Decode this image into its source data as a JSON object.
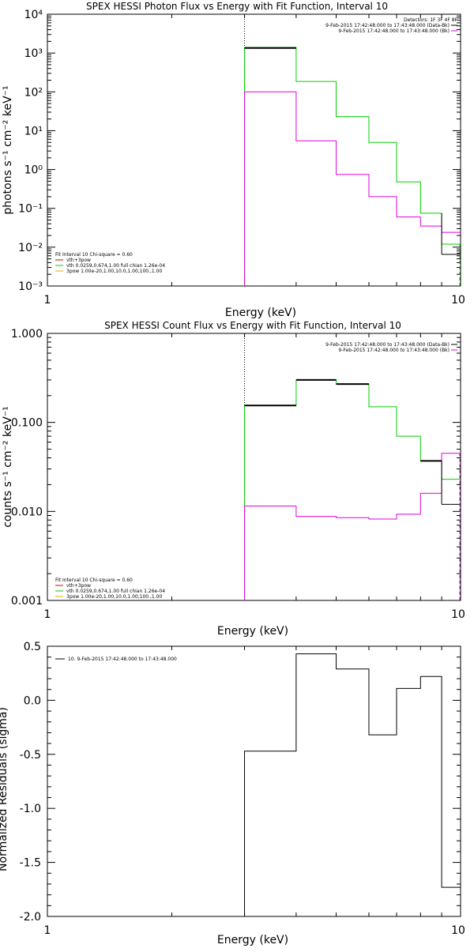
{
  "panels": [
    {
      "title": "SPEX HESSI Photon Flux vs Energy with Fit Function, Interval 10",
      "xlabel": "Energy (keV)",
      "ylabel": "photons s⁻¹ cm⁻² keV⁻¹",
      "legend_right": [
        "Detectors: 1F 3F 4F 8F",
        "9-Feb-2015 17:42:48.000 to 17:43:48.000 (Data-Bk)",
        "9-Feb-2015 17:42:48.000 to 17:43:48.000 (Bk)"
      ],
      "legend_left": [
        "Fit Interval 10   Chi-square = 0.60",
        "vth+3pow",
        "vth 0.0259,0.674,1.00  full chian 1.26e-04",
        "3pow 1.00e-20,1.00,10.0,1.00,100.,1.00"
      ],
      "ytick_labels": [
        "10⁻³",
        "10⁻²",
        "10⁻¹",
        "10⁰",
        "10¹",
        "10²",
        "10³",
        "10⁴"
      ]
    },
    {
      "title": "SPEX HESSI Count Flux vs Energy with Fit Function, Interval 10",
      "xlabel": "Energy (keV)",
      "ylabel": "counts s⁻¹ cm⁻² keV⁻¹",
      "legend_right": [
        "9-Feb-2015 17:42:48.000 to 17:43:48.000 (Data-Bk)",
        "9-Feb-2015 17:42:48.000 to 17:43:48.000 (Bk)"
      ],
      "legend_left": [
        "Fit Interval 10   Chi-square = 0.60",
        "vth+3pow",
        "vth 0.0259,0.674,1.00  full chian 1.26e-04",
        "3pow 1.00e-20,1.00,10.0,1.00,100.,1.00"
      ],
      "ytick_labels": [
        "0.001",
        "0.010",
        "0.100",
        "1.000"
      ]
    },
    {
      "title": "",
      "xlabel": "Energy (keV)",
      "ylabel": "Normalized Residuals (sigma)",
      "legend_right": [],
      "legend_left": [
        "10.  9-Feb-2015 17:42:48.000 to 17:43:48.000"
      ],
      "ytick_labels": [
        "-2.0",
        "-1.5",
        "-1.0",
        "-0.5",
        "0.0",
        "0.5"
      ]
    }
  ],
  "xtick_labels": [
    "1",
    "10"
  ],
  "colors": {
    "data": "#000000",
    "bk": "#e000e0",
    "fit": "#00d000",
    "vth": "#d00000",
    "pow": "#d8b000"
  },
  "chart_data": [
    {
      "type": "line",
      "title": "SPEX HESSI Photon Flux vs Energy with Fit Function, Interval 10",
      "xlabel": "Energy (keV)",
      "ylabel": "photons s⁻¹ cm⁻² keV⁻¹",
      "xscale": "log",
      "yscale": "log",
      "xlim": [
        1,
        10
      ],
      "ylim": [
        0.001,
        10000
      ],
      "bin_edges": [
        3,
        4,
        5,
        6,
        7,
        8,
        9,
        10
      ],
      "dotted_vline_x": 3,
      "series": [
        {
          "values": [
            1400,
            185,
            23,
            5.0,
            0.48,
            0.075,
            0.012
          ]
        },
        {
          "values": [
            100,
            5.5,
            0.75,
            0.2,
            0.06,
            0.035,
            0.024
          ]
        },
        {
          "values": [
            1350,
            185,
            23,
            5.0,
            0.48,
            0.075,
            0.012
          ]
        },
        {
          "values": [
            1350,
            185,
            23,
            5.0,
            0.48,
            0.075,
            0.012
          ]
        }
      ],
      "extra_data_last_bin": 0.0065,
      "legend_placement": "top-right"
    },
    {
      "type": "line",
      "title": "SPEX HESSI Count Flux vs Energy with Fit Function, Interval 10",
      "xlabel": "Energy (keV)",
      "ylabel": "counts s⁻¹ cm⁻² keV⁻¹",
      "xscale": "log",
      "yscale": "log",
      "xlim": [
        1,
        10
      ],
      "ylim": [
        0.001,
        1.0
      ],
      "bin_edges": [
        3,
        4,
        5,
        6,
        7,
        8,
        9,
        10
      ],
      "dotted_vline_x": 3,
      "series": [
        {
          "values": [
            0.155,
            0.3,
            0.27,
            0.15,
            0.07,
            0.037,
            0.012
          ]
        },
        {
          "values": [
            0.0115,
            0.0088,
            0.0085,
            0.0082,
            0.0093,
            0.016,
            0.045
          ]
        },
        {
          "values": [
            0.155,
            0.3,
            0.27,
            0.15,
            0.07,
            0.037,
            0.023
          ]
        }
      ],
      "legend_placement": "top-right"
    },
    {
      "type": "line",
      "xlabel": "Energy (keV)",
      "ylabel": "Normalized Residuals (sigma)",
      "xscale": "log",
      "yscale": "linear",
      "xlim": [
        1,
        10
      ],
      "ylim": [
        -2.0,
        0.5
      ],
      "bin_edges": [
        3,
        4,
        5,
        6,
        7,
        8,
        9,
        10
      ],
      "series": [
        {
          "values": [
            -0.47,
            0.43,
            0.29,
            -0.32,
            0.11,
            0.22,
            -1.73
          ]
        }
      ],
      "legend_placement": "top-left"
    }
  ]
}
